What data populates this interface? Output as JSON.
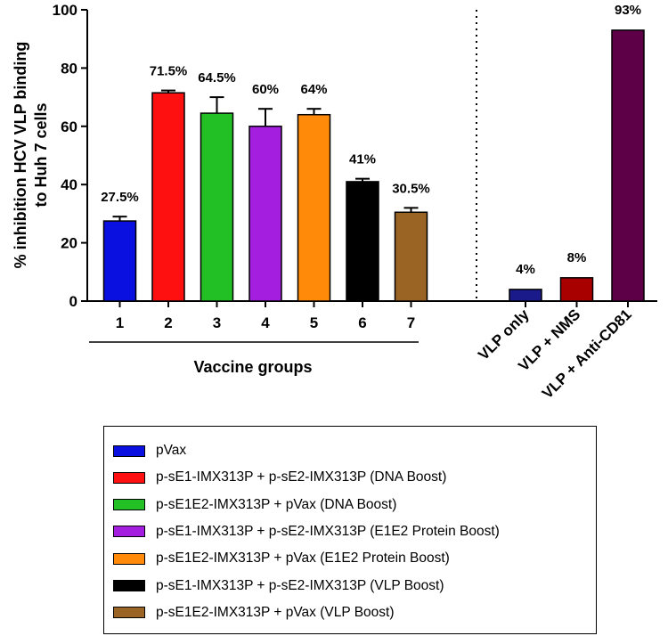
{
  "chart_data": {
    "type": "bar",
    "ylabel_line1": "% inhibition HCV VLP binding",
    "ylabel_line2": "to Huh 7 cells",
    "xlabel": "Vaccine groups",
    "ylim": [
      0,
      100
    ],
    "yticks": [
      0,
      20,
      40,
      60,
      80,
      100
    ],
    "vaccine_groups": [
      {
        "category": "1",
        "value": 27.5,
        "error": 1.5,
        "label": "27.5%",
        "color": "#0a10e0",
        "legend": "pVax"
      },
      {
        "category": "2",
        "value": 71.5,
        "error": 0.8,
        "label": "71.5%",
        "color": "#ff1010",
        "legend": "p-sE1-IMX313P + p-sE2-IMX313P (DNA Boost)"
      },
      {
        "category": "3",
        "value": 64.5,
        "error": 5.5,
        "label": "64.5%",
        "color": "#22c025",
        "legend": "p-sE1E2-IMX313P + pVax (DNA Boost)"
      },
      {
        "category": "4",
        "value": 60,
        "error": 6,
        "label": "60%",
        "color": "#a41ee0",
        "legend": "p-sE1-IMX313P + p-sE2-IMX313P (E1E2 Protein Boost)"
      },
      {
        "category": "5",
        "value": 64,
        "error": 2,
        "label": "64%",
        "color": "#ff8a0a",
        "legend": "p-sE1E2-IMX313P + pVax (E1E2 Protein Boost)"
      },
      {
        "category": "6",
        "value": 41,
        "error": 1,
        "label": "41%",
        "color": "#000000",
        "legend": "p-sE1-IMX313P + p-sE2-IMX313P (VLP Boost)"
      },
      {
        "category": "7",
        "value": 30.5,
        "error": 1.5,
        "label": "30.5%",
        "color": "#9a6424",
        "legend": "p-sE1E2-IMX313P + pVax (VLP Boost)"
      }
    ],
    "controls": [
      {
        "category": "VLP only",
        "value": 4,
        "label": "4%",
        "color": "#1a1a8a"
      },
      {
        "category": "VLP + NMS",
        "value": 8,
        "label": "8%",
        "color": "#a80000"
      },
      {
        "category": "VLP + Anti-CD81",
        "value": 93,
        "label": "93%",
        "color": "#5e0048"
      }
    ],
    "legend_placement": "bottom"
  }
}
